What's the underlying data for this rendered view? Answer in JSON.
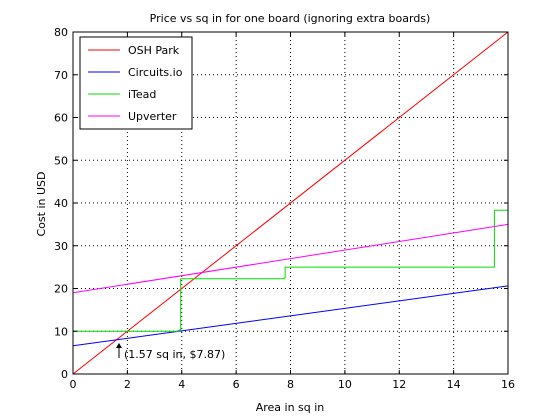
{
  "chart_data": {
    "type": "line",
    "title": "Price vs sq in for one board (ignoring extra boards)",
    "xlabel": "Area in sq in",
    "ylabel": "Cost in USD",
    "xlim": [
      0,
      16
    ],
    "ylim": [
      0,
      80
    ],
    "xticks": [
      0,
      2,
      4,
      6,
      8,
      10,
      12,
      14,
      16
    ],
    "xtick_labels": [
      "0",
      "2",
      "4",
      "6",
      "8",
      "10",
      "12",
      "14",
      "16"
    ],
    "yticks": [
      0,
      10,
      20,
      30,
      40,
      50,
      60,
      70,
      80
    ],
    "ytick_labels": [
      "0",
      "10",
      "20",
      "30",
      "40",
      "50",
      "60",
      "70",
      "80"
    ],
    "grid": "dotted",
    "legend_position": "top-left",
    "series": [
      {
        "name": "OSH Park",
        "color": "#ff0000",
        "x": [
          0,
          16
        ],
        "y": [
          0,
          80
        ]
      },
      {
        "name": "Circuits.io",
        "color": "#0000ff",
        "x": [
          0,
          16
        ],
        "y": [
          6.6,
          20.6
        ]
      },
      {
        "name": "iTead",
        "color": "#00dd00",
        "x": [
          0,
          3.88,
          3.88,
          3.96,
          3.96,
          7.75,
          7.75,
          7.8,
          7.8,
          15.5,
          15.5,
          16
        ],
        "y": [
          10,
          10,
          10.2,
          10.4,
          22.3,
          22.3,
          22.3,
          22.5,
          25,
          25,
          38.3,
          38.3
        ]
      },
      {
        "name": "Upverter",
        "color": "#ff00ff",
        "x": [
          0,
          16
        ],
        "y": [
          19,
          35
        ]
      }
    ],
    "annotation": {
      "text": "(1.57 sq in, $7.87)",
      "x": 1.57,
      "y": 7.87
    }
  }
}
